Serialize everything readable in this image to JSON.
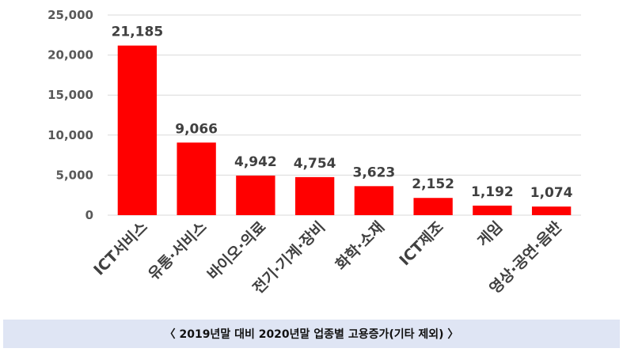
{
  "caption": "〈 2019년말 대비 2020년말 업종별 고용증가(기타 제외) 〉",
  "colors": {
    "bar": "#ff0000",
    "grid": "#d9d9d9"
  },
  "chart_data": {
    "type": "bar",
    "categories": [
      "ICT서비스",
      "유통·서비스",
      "바이오·의료",
      "전기·기계·장비",
      "화학·소재",
      "ICT제조",
      "게임",
      "영상·공연·음반"
    ],
    "values": [
      21185,
      9066,
      4942,
      4754,
      3623,
      2152,
      1192,
      1074
    ],
    "data_labels": [
      "21,185",
      "9,066",
      "4,942",
      "4,754",
      "3,623",
      "2,152",
      "1,192",
      "1,074"
    ],
    "y_ticks": [
      0,
      5000,
      10000,
      15000,
      20000,
      25000
    ],
    "y_tick_labels": [
      "0",
      "5,000",
      "10,000",
      "15,000",
      "20,000",
      "25,000"
    ],
    "ylim": [
      0,
      25000
    ],
    "grid": true,
    "legend": "none"
  }
}
